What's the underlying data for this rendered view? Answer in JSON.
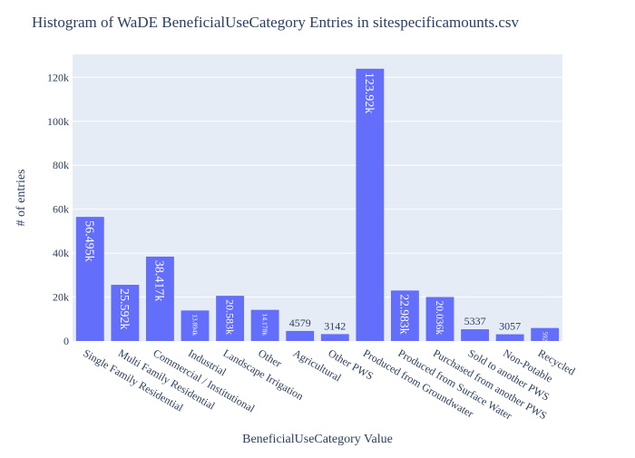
{
  "chart_data": {
    "type": "bar",
    "title": "Histogram of WaDE BeneficialUseCategory Entries in sitespecificamounts.csv",
    "xlabel": "BeneficialUseCategory Value",
    "ylabel": "# of entries",
    "categories": [
      "Single Family Residential",
      "Multi Family Residential",
      "Commercial / Institutional",
      "Industrial",
      "Landscape Irrigation",
      "Other",
      "Agricultural",
      "Other PWS",
      "Produced from Groundwater",
      "Produced from Surface Water",
      "Purchased from another PWS",
      "Sold to another PWS",
      "Non-Potable",
      "Recycled"
    ],
    "values": [
      56495,
      25592,
      38417,
      13894,
      20583,
      14178,
      4579,
      3142,
      123920,
      22983,
      20036,
      5337,
      3057,
      5924
    ],
    "labels": [
      "56.495k",
      "25.592k",
      "38.417k",
      "13.894k",
      "20.583k",
      "14.178k",
      "4579",
      "3142",
      "123.92k",
      "22.983k",
      "20.036k",
      "5337",
      "3057",
      "5924"
    ],
    "label_inside": [
      true,
      true,
      true,
      true,
      true,
      true,
      false,
      false,
      true,
      true,
      true,
      false,
      false,
      true
    ],
    "yticks": [
      0,
      20000,
      40000,
      60000,
      80000,
      100000,
      120000
    ],
    "ytick_labels": [
      "0",
      "20k",
      "40k",
      "60k",
      "80k",
      "100k",
      "120k"
    ],
    "ylim": [
      0,
      130447
    ],
    "grid": true,
    "colors": {
      "bar": "#636efa",
      "plot_bg": "#e5ecf6",
      "grid": "#ffffff",
      "text": "#2a3f5f"
    }
  }
}
